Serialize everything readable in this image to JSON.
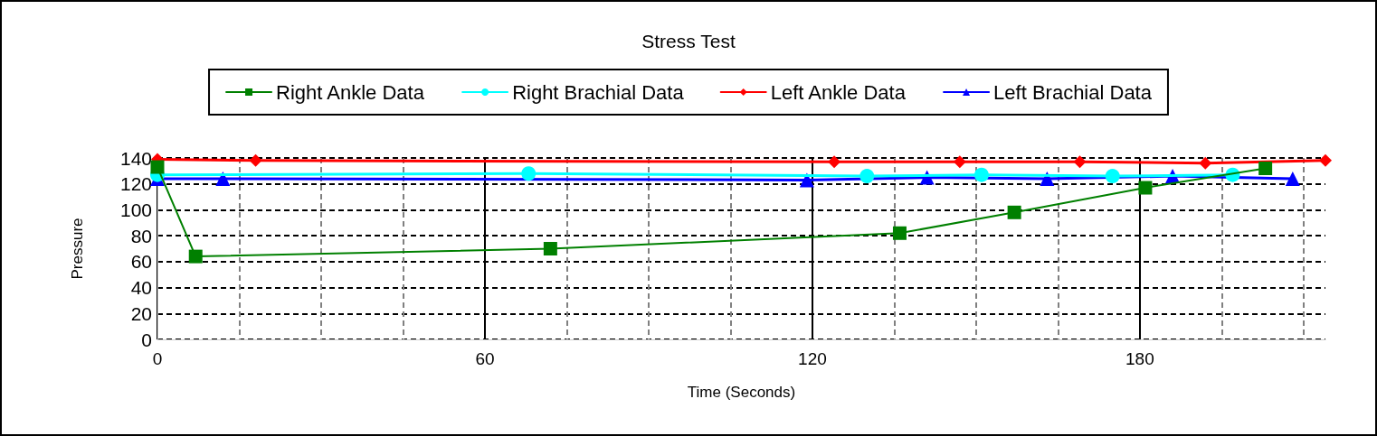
{
  "chart_data": {
    "type": "line",
    "title": "Stress Test",
    "xlabel": "Time (Seconds)",
    "ylabel": "Pressure",
    "xlim": [
      0,
      214
    ],
    "xticks": [
      0,
      60,
      120,
      180
    ],
    "ylim": [
      0,
      140
    ],
    "yticks": [
      0,
      20,
      40,
      60,
      80,
      100,
      120,
      140
    ],
    "grid": true,
    "legend": "top",
    "line_style": "solid",
    "series": [
      {
        "name": "Right Ankle Data",
        "color": "#008000",
        "marker": "square",
        "x": [
          0,
          7,
          72,
          136,
          157,
          181,
          203
        ],
        "values": [
          133,
          64,
          70,
          82,
          98,
          117,
          132
        ]
      },
      {
        "name": "Right Brachial Data",
        "color": "#00ffff",
        "marker": "circle",
        "x": [
          0,
          68,
          130,
          151,
          175,
          197
        ],
        "values": [
          127,
          128,
          126,
          127,
          126,
          127
        ]
      },
      {
        "name": "Left Ankle Data",
        "color": "#ff0000",
        "marker": "diamond",
        "x": [
          0,
          18,
          124,
          147,
          169,
          192,
          214
        ],
        "values": [
          139,
          138,
          137,
          137,
          137,
          136,
          138
        ]
      },
      {
        "name": "Left Brachial Data",
        "color": "#0000ff",
        "marker": "triangle",
        "x": [
          0,
          12,
          119,
          141,
          163,
          186,
          208
        ],
        "values": [
          124,
          124,
          123,
          125,
          124,
          126,
          124
        ]
      }
    ]
  }
}
